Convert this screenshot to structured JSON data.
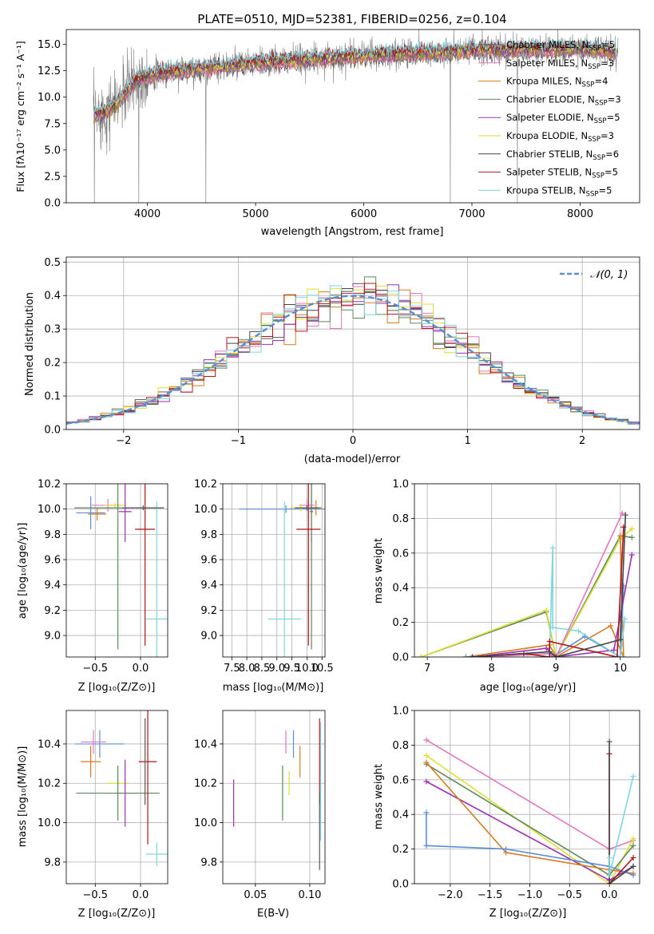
{
  "figure": {
    "title": "PLATE=0510, MJD=52381, FIBERID=0256, z=0.104"
  },
  "chart_data": [
    {
      "id": "spectrum",
      "type": "line",
      "title": "PLATE=0510, MJD=52381, FIBERID=0256, z=0.104",
      "xlabel": "wavelength [Angstrom, rest frame]",
      "ylabel": "Flux [fλ10⁻¹⁷ erg cm⁻² s⁻¹ A⁻¹]",
      "xlim": [
        3250,
        8550
      ],
      "ylim": [
        0,
        16.4
      ],
      "xticks": [
        4000,
        5000,
        6000,
        7000,
        8000
      ],
      "yticks": [
        0.0,
        2.5,
        5.0,
        7.5,
        10.0,
        12.5,
        15.0
      ],
      "grid": false,
      "legend_position": "top-right",
      "series": [
        {
          "name": "Chabrier MILES, N_SSP=5",
          "color": "#555555"
        },
        {
          "name": "Salpeter MILES, N_SSP=3",
          "color": "#e377c2"
        },
        {
          "name": "Kroupa MILES, N_SSP=4",
          "color": "#d97b1f"
        },
        {
          "name": "Chabrier ELODIE, N_SSP=3",
          "color": "#5e8a5a"
        },
        {
          "name": "Salpeter ELODIE, N_SSP=5",
          "color": "#9b2fb5"
        },
        {
          "name": "Kroupa ELODIE, N_SSP=3",
          "color": "#dede33"
        },
        {
          "name": "Chabrier STELIB, N_SSP=6",
          "color": "#444444"
        },
        {
          "name": "Salpeter STELIB, N_SSP=5",
          "color": "#b0141a"
        },
        {
          "name": "Kroupa STELIB, N_SSP=5",
          "color": "#7ed6e0"
        }
      ],
      "continuum": {
        "x": [
          3500,
          3600,
          3700,
          3800,
          3900,
          4000,
          4200,
          4500,
          5000,
          5500,
          6000,
          6500,
          7000,
          7500,
          8000,
          8300
        ],
        "y": [
          8.3,
          8.6,
          9.2,
          10.5,
          11.7,
          12.0,
          12.4,
          12.7,
          13.2,
          13.6,
          13.9,
          14.2,
          14.4,
          14.5,
          14.6,
          14.4
        ]
      },
      "observed_range": [
        3500,
        8350
      ],
      "dropouts": [
        3510,
        3920,
        4540,
        6800,
        7420
      ]
    },
    {
      "id": "residuals",
      "type": "bar",
      "xlabel": "(data-model)/error",
      "ylabel": "Normed distribution",
      "xlim": [
        -2.5,
        2.5
      ],
      "ylim": [
        0,
        0.515
      ],
      "xticks": [
        -2,
        -1,
        0,
        1,
        2
      ],
      "yticks": [
        0.0,
        0.1,
        0.2,
        0.3,
        0.4,
        0.5
      ],
      "grid": true,
      "legend_position": "top-right",
      "legend": "𝒩(0, 1)",
      "bin_width": 0.1,
      "bin_start": -2.5,
      "colors": [
        "#555555",
        "#e377c2",
        "#d97b1f",
        "#5e8a5a",
        "#9b2fb5",
        "#dede33",
        "#444444",
        "#b0141a",
        "#7ed6e0"
      ],
      "gaussian_color": "#5b8ed6"
    },
    {
      "id": "age_vs_Z",
      "type": "scatter",
      "xlabel": "Z [log₁₀(Z/Z⊙)]",
      "ylabel": "age  [log₁₀(age/yr)]",
      "xlim": [
        -0.82,
        0.3
      ],
      "ylim": [
        8.83,
        10.2
      ],
      "xticks": [
        -0.5,
        0.0
      ],
      "yticks": [
        9.0,
        9.2,
        9.4,
        9.6,
        9.8,
        10.0,
        10.2
      ],
      "grid": true,
      "points": [
        {
          "x": -0.55,
          "y": 9.97,
          "xerr": 0.16,
          "yerr": 0.13,
          "color": "#5b8ed6"
        },
        {
          "x": -0.48,
          "y": 9.96,
          "xerr": 0.1,
          "yerr": 0.05,
          "color": "#d97b1f"
        },
        {
          "x": -0.36,
          "y": 10.03,
          "xerr": 0.18,
          "yerr": 0.05,
          "color": "#e377c2"
        },
        {
          "x": -0.28,
          "y": 10.03,
          "xerr": 0.12,
          "yerr": 0.02,
          "color": "#dede33"
        },
        {
          "x": -0.17,
          "y": 9.98,
          "xerr": 0.07,
          "yerr": 0.24,
          "color": "#9b2fb5"
        },
        {
          "x": -0.25,
          "y": 10.01,
          "xerr": 0.48,
          "yerr": 1.12,
          "color": "#5e8a5a"
        },
        {
          "x": 0.05,
          "y": 9.84,
          "xerr": 0.11,
          "yerr": 0.92,
          "color": "#b0141a"
        },
        {
          "x": 0.18,
          "y": 9.13,
          "xerr": 0.12,
          "yerr": 0.93,
          "color": "#7ed6e0"
        },
        {
          "x": 0.03,
          "y": 10.01,
          "xerr": 0.23,
          "yerr": 0.02,
          "color": "#555555"
        }
      ]
    },
    {
      "id": "age_vs_mass",
      "type": "scatter",
      "xlabel": "mass [log₁₀(M/M⊙)]",
      "ylabel": "",
      "xlim": [
        7.2,
        10.6
      ],
      "ylim": [
        8.83,
        10.2
      ],
      "xticks": [
        7.5,
        8.0,
        8.5,
        9.0,
        9.5,
        10.0,
        10.5
      ],
      "yticks": [
        9.0,
        9.2,
        9.4,
        9.6,
        9.8,
        10.0,
        10.2
      ],
      "grid": true,
      "points": [
        {
          "x": 9.3,
          "y": 10.0,
          "xerr": 1.55,
          "yerr": 0.03,
          "color": "#5b8ed6"
        },
        {
          "x": 10.0,
          "y": 10.03,
          "xerr": 0.25,
          "yerr": 0.05,
          "color": "#e377c2"
        },
        {
          "x": 9.8,
          "y": 10.01,
          "xerr": 0.35,
          "yerr": 0.03,
          "color": "#dede33"
        },
        {
          "x": 10.15,
          "y": 9.98,
          "xerr": 0.05,
          "yerr": 0.24,
          "color": "#9b2fb5"
        },
        {
          "x": 10.3,
          "y": 10.01,
          "xerr": 0.2,
          "yerr": 0.06,
          "color": "#d97b1f"
        },
        {
          "x": 10.15,
          "y": 10.01,
          "xerr": 0.3,
          "yerr": 1.12,
          "color": "#5e8a5a"
        },
        {
          "x": 10.05,
          "y": 9.84,
          "xerr": 0.4,
          "yerr": 0.92,
          "color": "#b0141a"
        },
        {
          "x": 9.25,
          "y": 9.13,
          "xerr": 0.55,
          "yerr": 0.93,
          "color": "#7ed6e0"
        },
        {
          "x": 10.0,
          "y": 10.01,
          "xerr": 0.4,
          "yerr": 0.02,
          "color": "#555555"
        }
      ]
    },
    {
      "id": "massweight_vs_age",
      "type": "line",
      "xlabel": "age  [log₁₀(age/yr)]",
      "ylabel": "mass weight",
      "xlim": [
        6.8,
        10.3
      ],
      "ylim": [
        0.0,
        1.0
      ],
      "xticks": [
        7,
        8,
        9,
        10
      ],
      "yticks": [
        0.0,
        0.2,
        0.4,
        0.6,
        0.8,
        1.0
      ],
      "grid": true,
      "series": [
        {
          "color": "#5e8a5a",
          "x": [
            6.9,
            8.85,
            9.0,
            10.0,
            10.18
          ],
          "y": [
            0.0,
            0.26,
            0.0,
            0.7,
            0.69
          ]
        },
        {
          "color": "#dede33",
          "x": [
            6.9,
            8.85,
            9.0,
            10.0,
            10.18
          ],
          "y": [
            0.0,
            0.27,
            0.0,
            0.68,
            0.74
          ]
        },
        {
          "color": "#d97b1f",
          "x": [
            7.6,
            8.9,
            9.0,
            9.85,
            10.05,
            10.0
          ],
          "y": [
            0.0,
            0.07,
            0.0,
            0.18,
            0.0,
            0.7
          ]
        },
        {
          "color": "#5b8ed6",
          "x": [
            7.6,
            8.9,
            8.95,
            9.45,
            10.0,
            10.05
          ],
          "y": [
            0.0,
            0.02,
            0.0,
            0.12,
            0.0,
            0.41
          ]
        },
        {
          "color": "#9b2fb5",
          "x": [
            7.7,
            8.85,
            9.0,
            9.9,
            10.18
          ],
          "y": [
            0.0,
            0.05,
            0.0,
            0.04,
            0.59
          ]
        },
        {
          "color": "#7ed6e0",
          "x": [
            7.75,
            8.55,
            8.9,
            8.95,
            8.95,
            9.35,
            10.0,
            10.07
          ],
          "y": [
            0.0,
            0.02,
            0.0,
            0.63,
            0.17,
            0.15,
            0.0,
            0.22
          ]
        },
        {
          "color": "#e377c2",
          "x": [
            7.9,
            8.9,
            9.0,
            10.03
          ],
          "y": [
            0.0,
            0.02,
            0.0,
            0.83
          ]
        },
        {
          "color": "#b0141a",
          "x": [
            7.7,
            8.5,
            8.9,
            8.9,
            9.95,
            10.05
          ],
          "y": [
            0.0,
            0.02,
            0.0,
            0.09,
            0.0,
            0.75
          ]
        },
        {
          "color": "#444444",
          "x": [
            7.7,
            8.9,
            9.0,
            10.0,
            10.08
          ],
          "y": [
            0.0,
            0.03,
            0.0,
            0.1,
            0.82
          ]
        }
      ]
    },
    {
      "id": "mass_vs_Z",
      "type": "scatter",
      "xlabel": "Z [log₁₀(Z/Z⊙)]",
      "ylabel": "mass [log₁₀(M/M⊙)]",
      "xlim": [
        -0.82,
        0.3
      ],
      "ylim": [
        9.69,
        10.57
      ],
      "xticks": [
        -0.5,
        0.0
      ],
      "yticks": [
        9.8,
        10.0,
        10.2,
        10.4
      ],
      "grid": true,
      "points": [
        {
          "x": -0.45,
          "y": 10.4,
          "xerr": 0.27,
          "yerr": 0.07,
          "color": "#5b8ed6"
        },
        {
          "x": -0.52,
          "y": 10.41,
          "xerr": 0.14,
          "yerr": 0.06,
          "color": "#e377c2"
        },
        {
          "x": -0.55,
          "y": 10.31,
          "xerr": 0.11,
          "yerr": 0.08,
          "color": "#d97b1f"
        },
        {
          "x": -0.25,
          "y": 10.2,
          "xerr": 0.12,
          "yerr": 0.06,
          "color": "#dede33"
        },
        {
          "x": -0.17,
          "y": 10.15,
          "xerr": 0.12,
          "yerr": 0.17,
          "color": "#9b2fb5"
        },
        {
          "x": -0.25,
          "y": 10.15,
          "xerr": 0.46,
          "yerr": 0.14,
          "color": "#5e8a5a"
        },
        {
          "x": 0.08,
          "y": 10.31,
          "xerr": 0.1,
          "yerr": 0.42,
          "color": "#b0141a"
        },
        {
          "x": 0.18,
          "y": 9.84,
          "xerr": 0.12,
          "yerr": 0.06,
          "color": "#7ed6e0"
        },
        {
          "x": 0.05,
          "y": 10.31,
          "xerr": 0.01,
          "yerr": 0.22,
          "color": "#555555"
        }
      ]
    },
    {
      "id": "mass_vs_ebv",
      "type": "scatter",
      "xlabel": "E(B-V)",
      "ylabel": "",
      "xlim": [
        0.02,
        0.114
      ],
      "ylim": [
        9.69,
        10.57
      ],
      "xticks": [
        0.05,
        0.1
      ],
      "yticks": [
        9.8,
        10.0,
        10.2,
        10.4
      ],
      "grid": true,
      "points": [
        {
          "x": 0.03,
          "y": 10.1,
          "xerr": 0.0,
          "yerr": 0.12,
          "color": "#9b2fb5"
        },
        {
          "x": 0.075,
          "y": 10.15,
          "xerr": 0.0,
          "yerr": 0.14,
          "color": "#5e8a5a"
        },
        {
          "x": 0.078,
          "y": 10.41,
          "xerr": 0.0,
          "yerr": 0.06,
          "color": "#e377c2"
        },
        {
          "x": 0.081,
          "y": 10.2,
          "xerr": 0.0,
          "yerr": 0.06,
          "color": "#dede33"
        },
        {
          "x": 0.085,
          "y": 10.4,
          "xerr": 0.0,
          "yerr": 0.07,
          "color": "#5b8ed6"
        },
        {
          "x": 0.091,
          "y": 10.31,
          "xerr": 0.0,
          "yerr": 0.08,
          "color": "#d97b1f"
        },
        {
          "x": 0.109,
          "y": 10.31,
          "xerr": 0.0,
          "yerr": 0.22,
          "color": "#b0141a"
        },
        {
          "x": 0.11,
          "y": 10.21,
          "xerr": 0.0,
          "yerr": 0.3,
          "color": "#7ed6e0"
        },
        {
          "x": 0.109,
          "y": 9.96,
          "xerr": 0.0,
          "yerr": 0.2,
          "color": "#555555"
        }
      ]
    },
    {
      "id": "massweight_vs_Z",
      "type": "line",
      "xlabel": "Z [log₁₀(Z/Z⊙)]",
      "ylabel": "mass weight",
      "xlim": [
        -2.45,
        0.38
      ],
      "ylim": [
        0.0,
        1.0
      ],
      "xticks": [
        -2.0,
        -1.5,
        -1.0,
        -0.5,
        0.0
      ],
      "yticks": [
        0.0,
        0.2,
        0.4,
        0.6,
        0.8,
        1.0
      ],
      "grid": true,
      "series": [
        {
          "color": "#e377c2",
          "x": [
            -2.3,
            0.0,
            0.3
          ],
          "y": [
            0.83,
            0.2,
            0.25
          ]
        },
        {
          "color": "#dede33",
          "x": [
            -2.3,
            0.0,
            0.3
          ],
          "y": [
            0.74,
            0.0,
            0.26
          ]
        },
        {
          "color": "#5e8a5a",
          "x": [
            -2.3,
            0.0,
            0.3
          ],
          "y": [
            0.69,
            0.05,
            0.22
          ]
        },
        {
          "color": "#9b2fb5",
          "x": [
            -2.3,
            0.0,
            0.3
          ],
          "y": [
            0.59,
            0.02,
            0.1
          ]
        },
        {
          "color": "#d97b1f",
          "x": [
            -2.3,
            -1.3,
            0.0,
            0.3
          ],
          "y": [
            0.7,
            0.18,
            0.08,
            0.06
          ]
        },
        {
          "color": "#5b8ed6",
          "x": [
            -2.3,
            -2.3,
            -1.3,
            0.0,
            0.3
          ],
          "y": [
            0.41,
            0.22,
            0.2,
            0.1,
            0.05
          ]
        },
        {
          "color": "#b0141a",
          "x": [
            0.0,
            0.0,
            0.3
          ],
          "y": [
            0.75,
            0.0,
            0.15
          ]
        },
        {
          "color": "#444444",
          "x": [
            0.0,
            0.0,
            0.3
          ],
          "y": [
            0.82,
            0.0,
            0.1
          ]
        },
        {
          "color": "#7ed6e0",
          "x": [
            0.0,
            0.0,
            0.3
          ],
          "y": [
            0.15,
            0.05,
            0.62
          ]
        }
      ]
    }
  ]
}
